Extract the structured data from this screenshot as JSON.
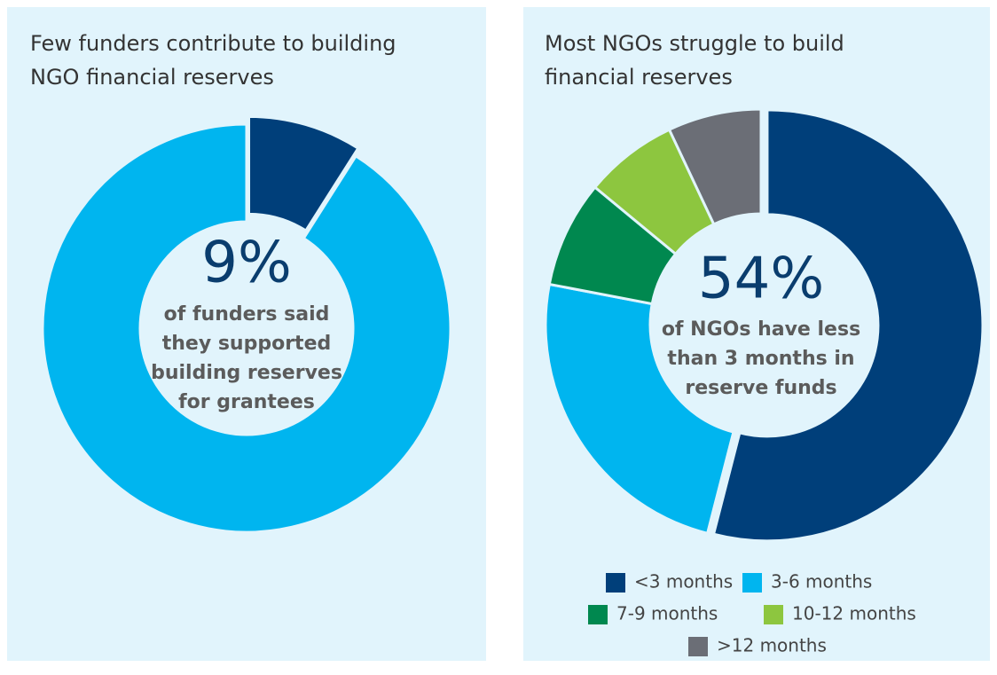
{
  "chart_data": [
    {
      "type": "donut",
      "title": [
        "Few funders contribute to building",
        "NGO financial reserves"
      ],
      "categories": [
        null,
        null
      ],
      "values": [
        9,
        91
      ],
      "value_labels": [
        "9%",
        null
      ],
      "colors": [
        "#003f7a",
        "#00b5ef"
      ],
      "annotation": [
        "of funders said",
        "they supported",
        "building reserves",
        "for grantees"
      ],
      "legend": false
    },
    {
      "type": "donut",
      "title": [
        "Most NGOs struggle to build",
        "financial reserves"
      ],
      "categories": [
        "<3 months",
        "3-6 months",
        "7-9 months",
        "10-12 months",
        ">12 months"
      ],
      "values": [
        54,
        24,
        8,
        7,
        7
      ],
      "value_labels": [
        "54%",
        null,
        null,
        null,
        null
      ],
      "colors": [
        "#003f7a",
        "#00b5ef",
        "#00884f",
        "#8dc63f",
        "#6b6e76"
      ],
      "annotation": [
        "of NGOs have less",
        "than 3 months in",
        "reserve funds"
      ],
      "legend": true
    }
  ]
}
